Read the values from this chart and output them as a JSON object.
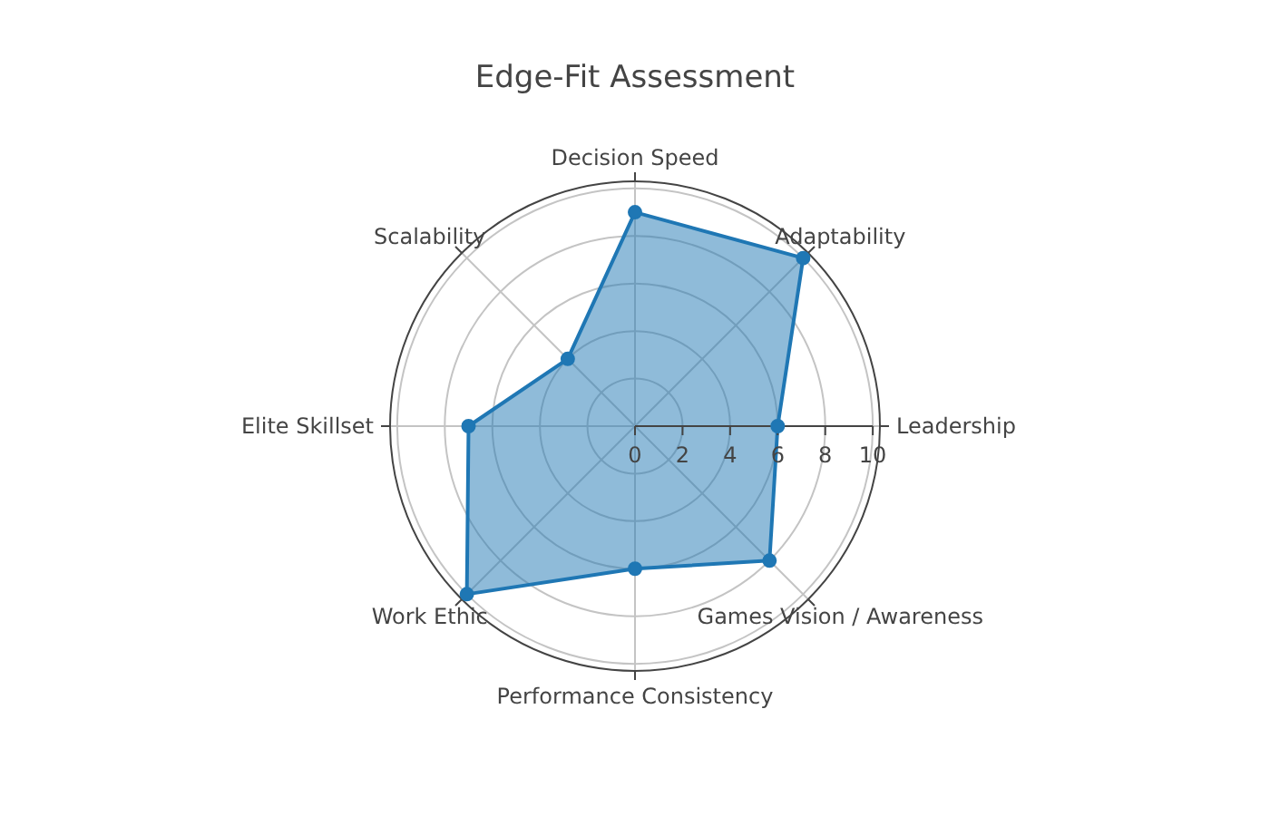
{
  "chart_data": {
    "type": "radar",
    "title": "Edge-Fit Assessment",
    "categories": [
      "Decision Speed",
      "Adaptability",
      "Leadership",
      "Games Vision / Awareness",
      "Performance Consistency",
      "Work Ethic",
      "Elite Skillset",
      "Scalability"
    ],
    "series": [
      {
        "color": "#1f77b4",
        "values": [
          9,
          10,
          6,
          8,
          6,
          10,
          7,
          4
        ]
      }
    ],
    "ylim": [
      0,
      10.3
    ],
    "yticks": [
      0,
      2,
      4,
      6,
      8,
      10
    ],
    "grid": true,
    "marker": "circle"
  }
}
